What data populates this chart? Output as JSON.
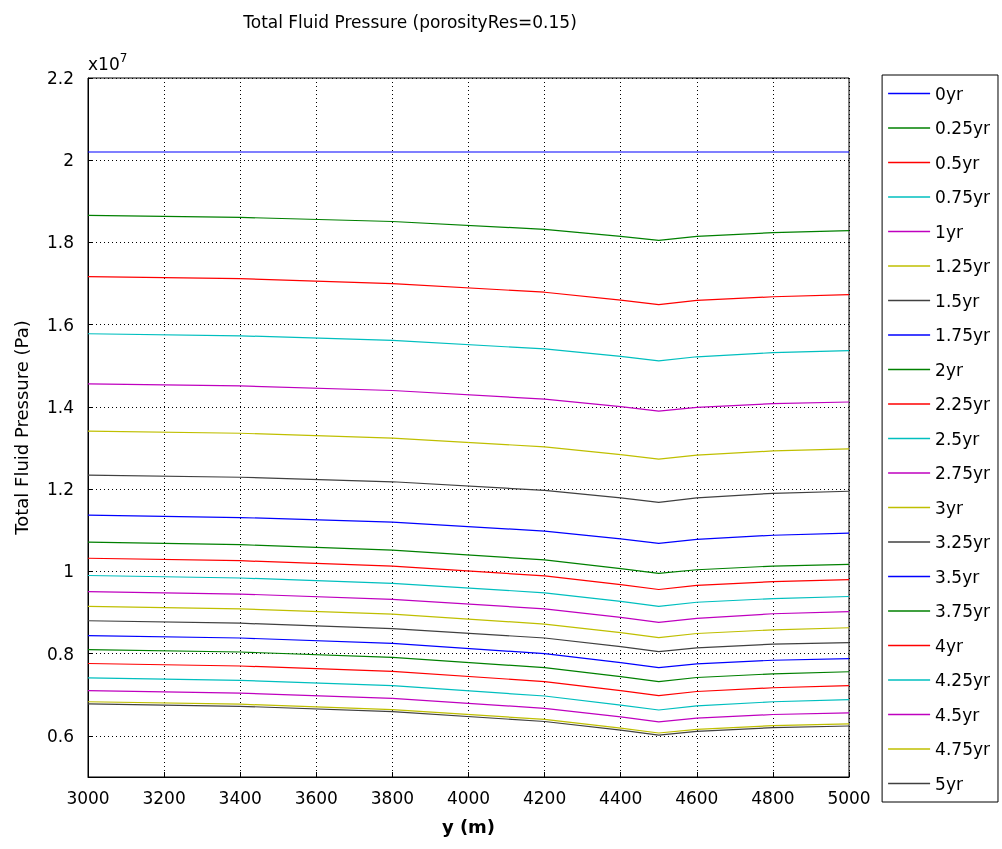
{
  "chart_data": {
    "type": "line",
    "title": "Total Fluid Pressure (porosityRes=0.15)",
    "xlabel": "y (m)",
    "ylabel": "Total Fluid Pressure (Pa)",
    "annotations": [
      "x10$^{7}$"
    ],
    "x": [
      3000,
      3400,
      3800,
      4200,
      4400,
      4500,
      4600,
      4800,
      5000
    ],
    "xlim": [
      3000,
      5000
    ],
    "xticks": [
      3000,
      3200,
      3400,
      3600,
      3800,
      4000,
      4200,
      4400,
      4600,
      4800,
      5000
    ],
    "ylim": [
      0.5,
      2.2
    ],
    "yticks": [
      0.6,
      0.8,
      1,
      1.2,
      1.4,
      1.6,
      1.8,
      2,
      2.2
    ],
    "grid": true,
    "legend": "right",
    "line_style": "solid",
    "marker": "none",
    "series": [
      {
        "name": "0yr",
        "color": "#0000ff",
        "values": [
          2.02,
          2.02,
          2.02,
          2.02,
          2.02,
          2.02,
          2.02,
          2.02,
          2.02
        ]
      },
      {
        "name": "0.25yr",
        "color": "#008000",
        "values": [
          1.866,
          1.861,
          1.851,
          1.832,
          1.815,
          1.805,
          1.815,
          1.824,
          1.829
        ]
      },
      {
        "name": "0.5yr",
        "color": "#ff0000",
        "values": [
          1.717,
          1.712,
          1.7,
          1.679,
          1.66,
          1.649,
          1.659,
          1.668,
          1.673
        ]
      },
      {
        "name": "0.75yr",
        "color": "#00bfbf",
        "values": [
          1.578,
          1.573,
          1.562,
          1.541,
          1.523,
          1.512,
          1.522,
          1.532,
          1.537
        ]
      },
      {
        "name": "1yr",
        "color": "#bf00bf",
        "values": [
          1.456,
          1.451,
          1.44,
          1.419,
          1.401,
          1.39,
          1.399,
          1.408,
          1.412
        ]
      },
      {
        "name": "1.25yr",
        "color": "#bfbf00",
        "values": [
          1.341,
          1.336,
          1.324,
          1.303,
          1.284,
          1.273,
          1.283,
          1.293,
          1.298
        ]
      },
      {
        "name": "1.5yr",
        "color": "#404040",
        "values": [
          1.234,
          1.229,
          1.218,
          1.197,
          1.179,
          1.168,
          1.179,
          1.19,
          1.195
        ]
      },
      {
        "name": "1.75yr",
        "color": "#0000ff",
        "values": [
          1.137,
          1.131,
          1.12,
          1.098,
          1.079,
          1.068,
          1.078,
          1.088,
          1.093
        ]
      },
      {
        "name": "2yr",
        "color": "#008000",
        "values": [
          1.071,
          1.065,
          1.052,
          1.028,
          1.007,
          0.995,
          1.004,
          1.013,
          1.017
        ]
      },
      {
        "name": "2.25yr",
        "color": "#ff0000",
        "values": [
          1.032,
          1.026,
          1.013,
          0.989,
          0.968,
          0.956,
          0.966,
          0.975,
          0.98
        ]
      },
      {
        "name": "2.5yr",
        "color": "#00bfbf",
        "values": [
          0.99,
          0.984,
          0.971,
          0.948,
          0.927,
          0.915,
          0.925,
          0.934,
          0.939
        ]
      },
      {
        "name": "2.75yr",
        "color": "#bf00bf",
        "values": [
          0.951,
          0.945,
          0.932,
          0.909,
          0.888,
          0.876,
          0.886,
          0.897,
          0.902
        ]
      },
      {
        "name": "3yr",
        "color": "#bfbf00",
        "values": [
          0.915,
          0.909,
          0.896,
          0.872,
          0.851,
          0.839,
          0.849,
          0.858,
          0.863
        ]
      },
      {
        "name": "3.25yr",
        "color": "#404040",
        "values": [
          0.88,
          0.874,
          0.861,
          0.838,
          0.817,
          0.805,
          0.814,
          0.823,
          0.827
        ]
      },
      {
        "name": "3.5yr",
        "color": "#0000ff",
        "values": [
          0.844,
          0.838,
          0.825,
          0.8,
          0.778,
          0.766,
          0.775,
          0.784,
          0.788
        ]
      },
      {
        "name": "3.75yr",
        "color": "#008000",
        "values": [
          0.81,
          0.804,
          0.791,
          0.766,
          0.744,
          0.732,
          0.742,
          0.751,
          0.756
        ]
      },
      {
        "name": "4yr",
        "color": "#ff0000",
        "values": [
          0.776,
          0.77,
          0.757,
          0.732,
          0.71,
          0.698,
          0.708,
          0.717,
          0.722
        ]
      },
      {
        "name": "4.25yr",
        "color": "#00bfbf",
        "values": [
          0.741,
          0.735,
          0.722,
          0.697,
          0.675,
          0.663,
          0.673,
          0.683,
          0.688
        ]
      },
      {
        "name": "4.5yr",
        "color": "#bf00bf",
        "values": [
          0.71,
          0.704,
          0.691,
          0.667,
          0.646,
          0.634,
          0.643,
          0.652,
          0.656
        ]
      },
      {
        "name": "4.75yr",
        "color": "#bfbf00",
        "values": [
          0.683,
          0.677,
          0.664,
          0.64,
          0.619,
          0.607,
          0.616,
          0.625,
          0.629
        ]
      },
      {
        "name": "5yr",
        "color": "#404040",
        "values": [
          0.678,
          0.672,
          0.659,
          0.635,
          0.614,
          0.602,
          0.611,
          0.62,
          0.624
        ]
      }
    ]
  }
}
